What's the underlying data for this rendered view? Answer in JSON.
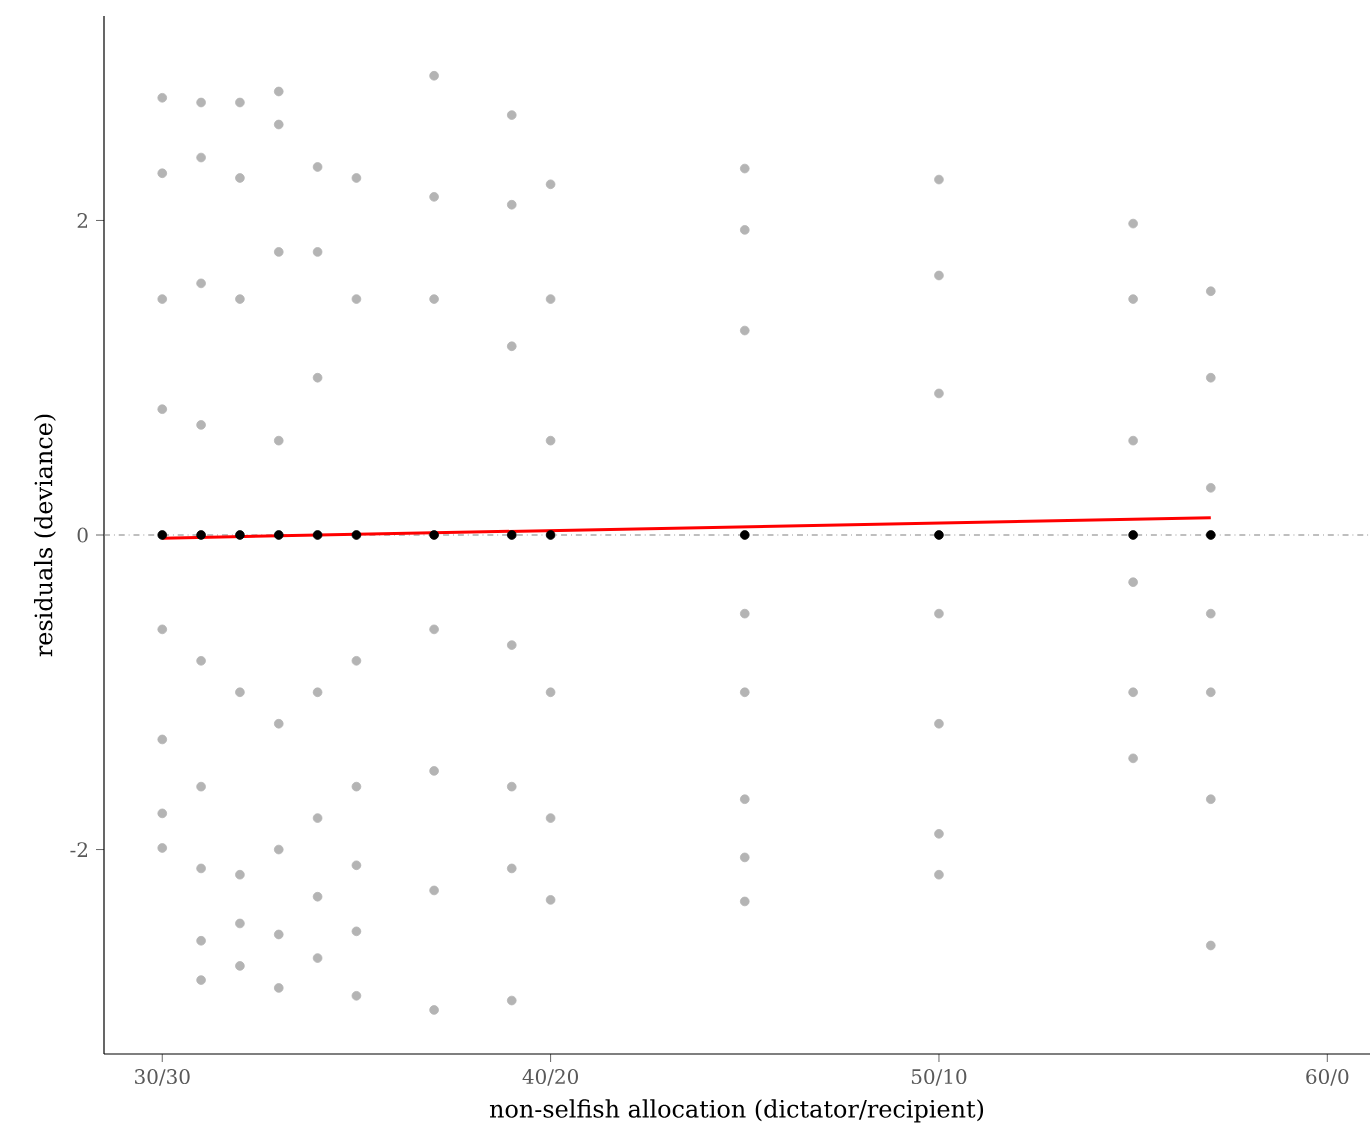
{
  "chart_data": {
    "type": "scatter",
    "xlabel": "non-selfish allocation (dictator/recipient)",
    "ylabel": "residuals (deviance)",
    "categories": [
      "30/30",
      null,
      null,
      null,
      null,
      null,
      null,
      null,
      null,
      null,
      "40/20",
      null,
      null,
      null,
      null,
      null,
      null,
      null,
      null,
      null,
      "50/10",
      null,
      null,
      null,
      null,
      null,
      null,
      null,
      null,
      null,
      "60/0"
    ],
    "ylim": [
      -3.3,
      3.3
    ],
    "yticks": [
      -2,
      0,
      2
    ],
    "grid": false,
    "ref_lines": [
      {
        "axis": "y",
        "value": 0,
        "color": "#808080",
        "line_style": "dashdot"
      }
    ],
    "series": [
      {
        "type": "scatter",
        "color": "#b4b4b4",
        "values": [
          2.78,
          2.75,
          2.75,
          2.82,
          2.34,
          2.27,
          null,
          2.92,
          null,
          2.67,
          2.23,
          null,
          null,
          null,
          null,
          2.33,
          null,
          null,
          null,
          null,
          2.26,
          null,
          null,
          null,
          null,
          1.98,
          null,
          1.55,
          null,
          null,
          null
        ]
      },
      {
        "type": "scatter",
        "color": "#b4b4b4",
        "values": [
          2.3,
          2.4,
          2.27,
          2.61,
          1.8,
          1.5,
          null,
          2.15,
          null,
          2.1,
          1.5,
          null,
          null,
          null,
          null,
          1.94,
          null,
          null,
          null,
          null,
          1.65,
          null,
          null,
          null,
          null,
          1.5,
          null,
          1.0,
          null,
          null,
          null
        ]
      },
      {
        "type": "scatter",
        "color": "#b4b4b4",
        "values": [
          1.5,
          1.6,
          1.5,
          1.8,
          1.0,
          -0.8,
          null,
          1.5,
          null,
          1.2,
          0.6,
          null,
          null,
          null,
          null,
          1.3,
          null,
          null,
          null,
          null,
          0.9,
          null,
          null,
          null,
          null,
          0.6,
          null,
          0.3,
          null,
          null,
          null
        ]
      },
      {
        "type": "scatter",
        "color": "#b4b4b4",
        "values": [
          0.8,
          0.7,
          -1.0,
          0.6,
          -1.0,
          -1.6,
          null,
          -0.6,
          null,
          -0.7,
          -1.0,
          null,
          null,
          null,
          null,
          -0.5,
          null,
          null,
          null,
          null,
          -0.5,
          null,
          null,
          null,
          null,
          -0.3,
          null,
          -0.5,
          null,
          null,
          null
        ]
      },
      {
        "type": "scatter",
        "color": "#b4b4b4",
        "values": [
          -0.6,
          -0.8,
          -2.16,
          -1.2,
          -1.8,
          -2.1,
          null,
          -1.5,
          null,
          -1.6,
          -1.8,
          null,
          null,
          null,
          null,
          -1.0,
          null,
          null,
          null,
          null,
          -1.2,
          null,
          null,
          null,
          null,
          -1.0,
          null,
          -1.0,
          null,
          null,
          null
        ]
      },
      {
        "type": "scatter",
        "color": "#b4b4b4",
        "values": [
          -1.3,
          -1.6,
          -2.47,
          -2.0,
          -2.3,
          -2.52,
          null,
          -2.26,
          null,
          -2.12,
          -2.32,
          null,
          null,
          null,
          null,
          -1.68,
          null,
          null,
          null,
          null,
          -1.9,
          null,
          null,
          null,
          null,
          -1.42,
          null,
          -1.68,
          null,
          null,
          null
        ]
      },
      {
        "type": "scatter",
        "color": "#b4b4b4",
        "values": [
          -1.77,
          -2.12,
          -2.74,
          -2.54,
          -2.69,
          -2.93,
          null,
          -3.02,
          null,
          -2.96,
          null,
          null,
          null,
          null,
          null,
          -2.05,
          null,
          null,
          null,
          null,
          -2.16,
          null,
          null,
          null,
          null,
          null,
          null,
          -2.61,
          null,
          null,
          null
        ]
      },
      {
        "type": "scatter",
        "color": "#b4b4b4",
        "values": [
          -1.99,
          -2.58,
          null,
          -2.88,
          null,
          null,
          null,
          null,
          null,
          null,
          null,
          null,
          null,
          null,
          null,
          -2.33,
          null,
          null,
          null,
          null,
          null,
          null,
          null,
          null,
          null,
          null,
          null,
          null,
          null,
          null,
          null
        ]
      },
      {
        "type": "scatter",
        "color": "#b4b4b4",
        "values": [
          null,
          -2.83,
          null,
          null,
          null,
          null,
          null,
          null,
          null,
          null,
          null,
          null,
          null,
          null,
          null,
          null,
          null,
          null,
          null,
          null,
          null,
          null,
          null,
          null,
          null,
          null,
          null,
          null,
          null,
          null,
          null
        ]
      },
      {
        "type": "scatter",
        "color": "#000000",
        "values": [
          0,
          0,
          0,
          0,
          0,
          0,
          null,
          0,
          null,
          0,
          0,
          null,
          null,
          null,
          null,
          0,
          null,
          null,
          null,
          null,
          0,
          null,
          null,
          null,
          null,
          0,
          null,
          0,
          null,
          null,
          null
        ]
      },
      {
        "type": "line",
        "color": "#ff0000",
        "marker": "none",
        "line_style": "solid",
        "values": [
          -0.02,
          null,
          null,
          null,
          null,
          null,
          null,
          null,
          null,
          null,
          null,
          null,
          null,
          null,
          null,
          null,
          null,
          null,
          null,
          null,
          null,
          null,
          null,
          null,
          null,
          null,
          null,
          0.11,
          null,
          null,
          null
        ]
      }
    ]
  }
}
